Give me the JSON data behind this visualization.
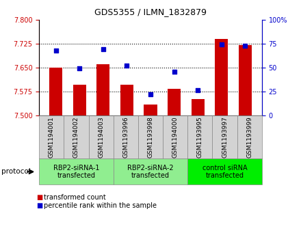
{
  "title": "GDS5355 / ILMN_1832879",
  "samples": [
    "GSM1194001",
    "GSM1194002",
    "GSM1194003",
    "GSM1193996",
    "GSM1193998",
    "GSM1194000",
    "GSM1193995",
    "GSM1193997",
    "GSM1193999"
  ],
  "bar_values": [
    7.65,
    7.596,
    7.66,
    7.596,
    7.534,
    7.583,
    7.552,
    7.74,
    7.72
  ],
  "dot_values": [
    68,
    49,
    69,
    52,
    22,
    46,
    26,
    74,
    73
  ],
  "ylim_left": [
    7.5,
    7.8
  ],
  "ylim_right": [
    0,
    100
  ],
  "yticks_left": [
    7.5,
    7.575,
    7.65,
    7.725,
    7.8
  ],
  "yticks_right": [
    0,
    25,
    50,
    75,
    100
  ],
  "bar_color": "#cc0000",
  "dot_color": "#0000cc",
  "gridline_values": [
    7.575,
    7.65,
    7.725
  ],
  "groups": [
    {
      "label": "RBP2-siRNA-1\ntransfected",
      "start": 0,
      "end": 3,
      "color": "#90ee90"
    },
    {
      "label": "RBP2-siRNA-2\ntransfected",
      "start": 3,
      "end": 6,
      "color": "#90ee90"
    },
    {
      "label": "control siRNA\ntransfected",
      "start": 6,
      "end": 9,
      "color": "#00ee00"
    }
  ],
  "sample_box_color": "#d3d3d3",
  "legend_bar_label": "transformed count",
  "legend_dot_label": "percentile rank within the sample",
  "protocol_label": "protocol",
  "title_fontsize": 9,
  "tick_fontsize": 7,
  "sample_fontsize": 6.5,
  "group_fontsize": 7,
  "legend_fontsize": 7
}
